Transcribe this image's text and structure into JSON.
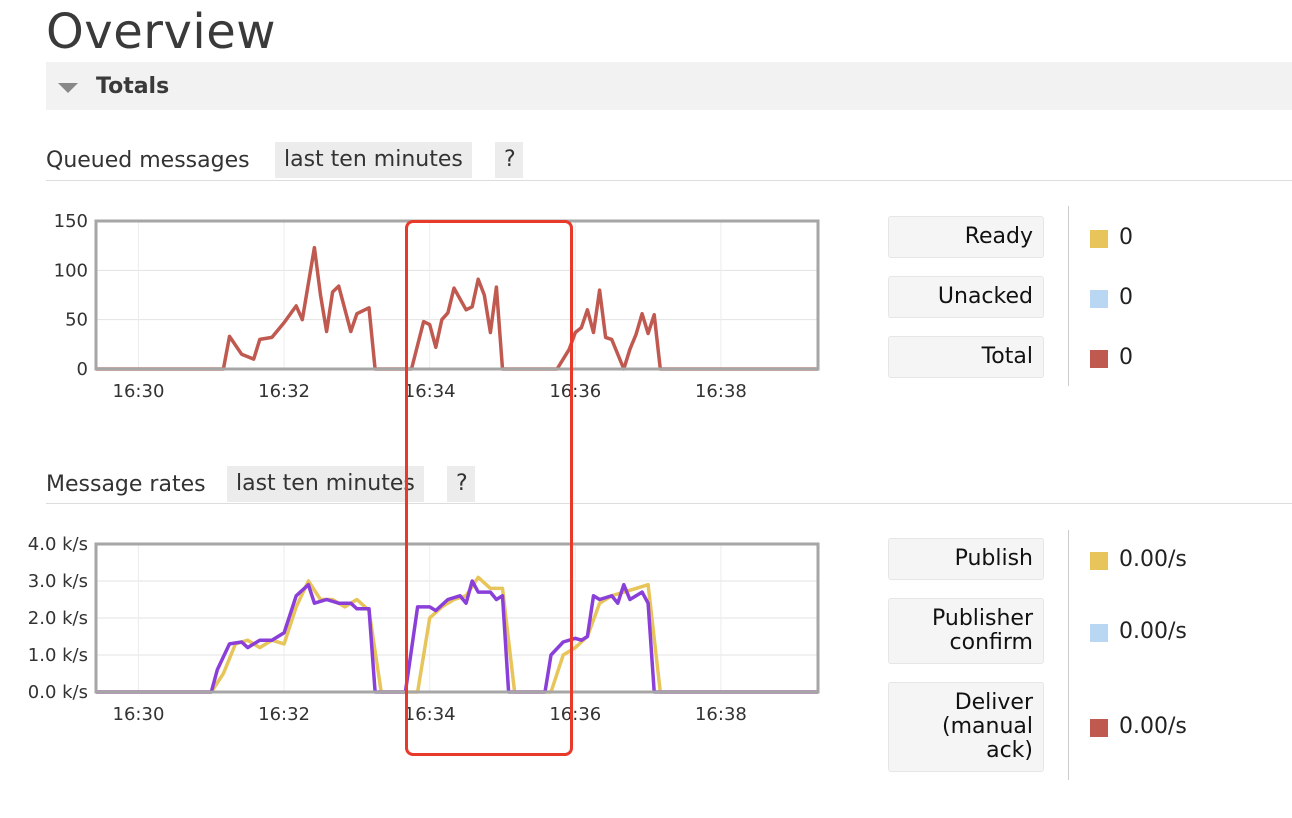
{
  "page": {
    "title": "Overview"
  },
  "totals": {
    "label": "Totals"
  },
  "queued": {
    "heading": "Queued messages",
    "range_chip": "last ten minutes",
    "help_chip": "?",
    "legend": [
      {
        "label": "Ready",
        "value": "0",
        "color": "#e8c55a"
      },
      {
        "label": "Unacked",
        "value": "0",
        "color": "#b9d7f2"
      },
      {
        "label": "Total",
        "value": "0",
        "color": "#c05a50"
      }
    ]
  },
  "rates": {
    "heading": "Message rates",
    "range_chip": "last ten minutes",
    "help_chip": "?",
    "legend": [
      {
        "label": "Publish",
        "value": "0.00/s",
        "color": "#e8c55a"
      },
      {
        "label": "Publisher confirm",
        "value": "0.00/s",
        "color": "#b9d7f2"
      },
      {
        "label": "Deliver (manual ack)",
        "value": "0.00/s",
        "color": "#c05a50"
      }
    ]
  },
  "chart_data": [
    {
      "type": "line",
      "x_ticks": [
        "16:30",
        "16:32",
        "16:34",
        "16:36",
        "16:38"
      ],
      "y_ticks": [
        "0",
        "50",
        "100",
        "150"
      ],
      "xlim": [
        "16:29:25",
        "16:39:20"
      ],
      "ylim": [
        0,
        150
      ],
      "grid": true,
      "series": [
        {
          "name": "Total",
          "color": "#c05a50",
          "points": [
            [
              "16:29:25",
              0
            ],
            [
              "16:31:10",
              0
            ],
            [
              "16:31:15",
              33
            ],
            [
              "16:31:25",
              15
            ],
            [
              "16:31:35",
              10
            ],
            [
              "16:31:40",
              30
            ],
            [
              "16:31:50",
              32
            ],
            [
              "16:32:00",
              47
            ],
            [
              "16:32:10",
              64
            ],
            [
              "16:32:15",
              50
            ],
            [
              "16:32:25",
              123
            ],
            [
              "16:32:30",
              75
            ],
            [
              "16:32:35",
              38
            ],
            [
              "16:32:40",
              78
            ],
            [
              "16:32:45",
              84
            ],
            [
              "16:32:55",
              38
            ],
            [
              "16:33:00",
              56
            ],
            [
              "16:33:10",
              62
            ],
            [
              "16:33:15",
              0
            ],
            [
              "16:33:40",
              0
            ],
            [
              "16:33:45",
              0
            ],
            [
              "16:33:55",
              48
            ],
            [
              "16:34:00",
              45
            ],
            [
              "16:34:05",
              22
            ],
            [
              "16:34:10",
              50
            ],
            [
              "16:34:15",
              57
            ],
            [
              "16:34:20",
              82
            ],
            [
              "16:34:30",
              60
            ],
            [
              "16:34:35",
              63
            ],
            [
              "16:34:40",
              91
            ],
            [
              "16:34:45",
              75
            ],
            [
              "16:34:50",
              37
            ],
            [
              "16:34:55",
              83
            ],
            [
              "16:35:00",
              0
            ],
            [
              "16:35:45",
              0
            ],
            [
              "16:35:55",
              20
            ],
            [
              "16:36:00",
              37
            ],
            [
              "16:36:05",
              42
            ],
            [
              "16:36:10",
              60
            ],
            [
              "16:36:15",
              37
            ],
            [
              "16:36:20",
              80
            ],
            [
              "16:36:25",
              32
            ],
            [
              "16:36:30",
              30
            ],
            [
              "16:36:40",
              0
            ],
            [
              "16:36:45",
              20
            ],
            [
              "16:36:50",
              35
            ],
            [
              "16:36:55",
              56
            ],
            [
              "16:37:00",
              36
            ],
            [
              "16:37:05",
              55
            ],
            [
              "16:37:10",
              0
            ],
            [
              "16:39:20",
              0
            ]
          ]
        }
      ]
    },
    {
      "type": "line",
      "x_ticks": [
        "16:30",
        "16:32",
        "16:34",
        "16:36",
        "16:38"
      ],
      "y_ticks": [
        "0.0 k/s",
        "1.0 k/s",
        "2.0 k/s",
        "3.0 k/s",
        "4.0 k/s"
      ],
      "xlim": [
        "16:29:25",
        "16:39:20"
      ],
      "ylim": [
        0,
        4.0
      ],
      "grid": true,
      "series": [
        {
          "name": "Publish",
          "color": "#e8c55a",
          "points": [
            [
              "16:29:25",
              0
            ],
            [
              "16:31:00",
              0
            ],
            [
              "16:31:10",
              0.5
            ],
            [
              "16:31:20",
              1.3
            ],
            [
              "16:31:30",
              1.4
            ],
            [
              "16:31:40",
              1.2
            ],
            [
              "16:31:50",
              1.4
            ],
            [
              "16:32:00",
              1.3
            ],
            [
              "16:32:10",
              2.3
            ],
            [
              "16:32:20",
              3.0
            ],
            [
              "16:32:30",
              2.5
            ],
            [
              "16:32:40",
              2.5
            ],
            [
              "16:32:50",
              2.3
            ],
            [
              "16:33:00",
              2.5
            ],
            [
              "16:33:10",
              2.2
            ],
            [
              "16:33:20",
              0
            ],
            [
              "16:33:50",
              0
            ],
            [
              "16:34:00",
              2.0
            ],
            [
              "16:34:10",
              2.3
            ],
            [
              "16:34:20",
              2.5
            ],
            [
              "16:34:30",
              2.6
            ],
            [
              "16:34:40",
              3.1
            ],
            [
              "16:34:50",
              2.8
            ],
            [
              "16:35:00",
              2.8
            ],
            [
              "16:35:10",
              0
            ],
            [
              "16:35:40",
              0
            ],
            [
              "16:35:50",
              1.0
            ],
            [
              "16:36:00",
              1.2
            ],
            [
              "16:36:10",
              1.5
            ],
            [
              "16:36:20",
              2.4
            ],
            [
              "16:36:30",
              2.6
            ],
            [
              "16:36:40",
              2.7
            ],
            [
              "16:36:50",
              2.8
            ],
            [
              "16:37:00",
              2.9
            ],
            [
              "16:37:10",
              0
            ],
            [
              "16:39:20",
              0
            ]
          ]
        },
        {
          "name": "Deliver (manual ack)",
          "color": "#8a3fd9",
          "points": [
            [
              "16:29:25",
              0
            ],
            [
              "16:31:00",
              0
            ],
            [
              "16:31:05",
              0.6
            ],
            [
              "16:31:15",
              1.3
            ],
            [
              "16:31:25",
              1.35
            ],
            [
              "16:31:30",
              1.2
            ],
            [
              "16:31:40",
              1.4
            ],
            [
              "16:31:50",
              1.4
            ],
            [
              "16:32:00",
              1.6
            ],
            [
              "16:32:10",
              2.6
            ],
            [
              "16:32:20",
              2.9
            ],
            [
              "16:32:25",
              2.4
            ],
            [
              "16:32:35",
              2.5
            ],
            [
              "16:32:45",
              2.4
            ],
            [
              "16:32:55",
              2.4
            ],
            [
              "16:33:00",
              2.25
            ],
            [
              "16:33:10",
              2.25
            ],
            [
              "16:33:15",
              0
            ],
            [
              "16:33:40",
              0
            ],
            [
              "16:33:50",
              2.3
            ],
            [
              "16:34:00",
              2.3
            ],
            [
              "16:34:05",
              2.2
            ],
            [
              "16:34:15",
              2.5
            ],
            [
              "16:34:25",
              2.6
            ],
            [
              "16:34:30",
              2.4
            ],
            [
              "16:34:35",
              3.0
            ],
            [
              "16:34:40",
              2.7
            ],
            [
              "16:34:50",
              2.7
            ],
            [
              "16:34:55",
              2.5
            ],
            [
              "16:35:00",
              2.6
            ],
            [
              "16:35:05",
              0
            ],
            [
              "16:35:35",
              0
            ],
            [
              "16:35:40",
              1.0
            ],
            [
              "16:35:50",
              1.35
            ],
            [
              "16:36:00",
              1.45
            ],
            [
              "16:36:05",
              1.4
            ],
            [
              "16:36:10",
              1.5
            ],
            [
              "16:36:15",
              2.6
            ],
            [
              "16:36:20",
              2.5
            ],
            [
              "16:36:30",
              2.6
            ],
            [
              "16:36:35",
              2.4
            ],
            [
              "16:36:40",
              2.9
            ],
            [
              "16:36:45",
              2.5
            ],
            [
              "16:36:55",
              2.7
            ],
            [
              "16:37:00",
              2.4
            ],
            [
              "16:37:05",
              0
            ],
            [
              "16:39:20",
              0
            ]
          ]
        }
      ]
    }
  ]
}
